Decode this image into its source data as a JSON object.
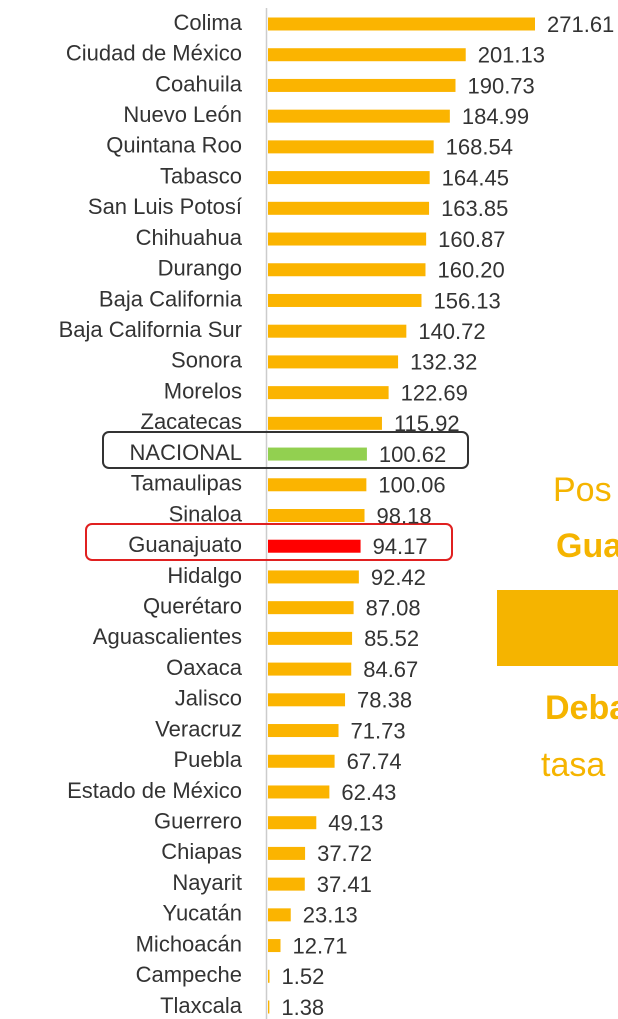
{
  "chart_data": {
    "type": "bar",
    "orientation": "horizontal",
    "categories": [
      "Colima",
      "Ciudad de México",
      "Coahuila",
      "Nuevo León",
      "Quintana Roo",
      "Tabasco",
      "San Luis Potosí",
      "Chihuahua",
      "Durango",
      "Baja California",
      "Baja California Sur",
      "Sonora",
      "Morelos",
      "Zacatecas",
      "NACIONAL",
      "Tamaulipas",
      "Sinaloa",
      "Guanajuato",
      "Hidalgo",
      "Querétaro",
      "Aguascalientes",
      "Oaxaca",
      "Jalisco",
      "Veracruz",
      "Puebla",
      "Estado de México",
      "Guerrero",
      "Chiapas",
      "Nayarit",
      "Yucatán",
      "Michoacán",
      "Campeche",
      "Tlaxcala"
    ],
    "values": [
      271.61,
      201.13,
      190.73,
      184.99,
      168.54,
      164.45,
      163.85,
      160.87,
      160.2,
      156.13,
      140.72,
      132.32,
      122.69,
      115.92,
      100.62,
      100.06,
      98.18,
      94.17,
      92.42,
      87.08,
      85.52,
      84.67,
      78.38,
      71.73,
      67.74,
      62.43,
      49.13,
      37.72,
      37.41,
      23.13,
      12.71,
      1.52,
      1.38
    ],
    "value_labels": [
      "271.61",
      "201.13",
      "190.73",
      "184.99",
      "168.54",
      "164.45",
      "163.85",
      "160.87",
      "160.20",
      "156.13",
      "140.72",
      "132.32",
      "122.69",
      "115.92",
      "100.62",
      "100.06",
      "98.18",
      "94.17",
      "92.42",
      "87.08",
      "85.52",
      "84.67",
      "78.38",
      "71.73",
      "67.74",
      "62.43",
      "49.13",
      "37.72",
      "37.41",
      "23.13",
      "12.71",
      "1.52",
      "1.38"
    ],
    "colors": [
      "#fbb400",
      "#fbb400",
      "#fbb400",
      "#fbb400",
      "#fbb400",
      "#fbb400",
      "#fbb400",
      "#fbb400",
      "#fbb400",
      "#fbb400",
      "#fbb400",
      "#fbb400",
      "#fbb400",
      "#fbb400",
      "#92d050",
      "#fbb400",
      "#fbb400",
      "#ff0000",
      "#fbb400",
      "#fbb400",
      "#fbb400",
      "#fbb400",
      "#fbb400",
      "#fbb400",
      "#fbb400",
      "#fbb400",
      "#fbb400",
      "#fbb400",
      "#fbb400",
      "#fbb400",
      "#fbb400",
      "#fbb400",
      "#fbb400"
    ],
    "annotations": [
      "Pos",
      "Gua",
      "Deba",
      "tasa"
    ]
  }
}
